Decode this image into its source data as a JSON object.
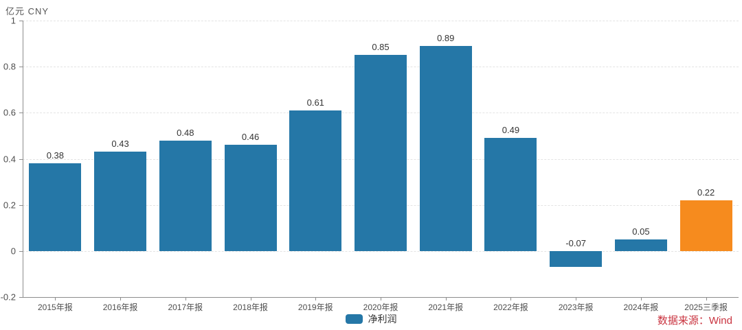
{
  "unit_label": "亿元  CNY",
  "source": {
    "text": "数据来源：Wind",
    "color": "#c9333f"
  },
  "legend": {
    "label": "净利润",
    "swatch_color": "#2577a7",
    "position": "bottom-center"
  },
  "chart_data": {
    "type": "bar",
    "title": "",
    "xlabel": "",
    "ylabel": "亿元 CNY",
    "categories": [
      "2015年报",
      "2016年报",
      "2017年报",
      "2018年报",
      "2019年报",
      "2020年报",
      "2021年报",
      "2022年报",
      "2023年报",
      "2024年报",
      "2025三季报"
    ],
    "series": [
      {
        "name": "净利润",
        "values": [
          0.38,
          0.43,
          0.48,
          0.46,
          0.61,
          0.85,
          0.89,
          0.49,
          -0.07,
          0.05,
          0.22
        ]
      }
    ],
    "data_labels": [
      "0.38",
      "0.43",
      "0.48",
      "0.46",
      "0.61",
      "0.85",
      "0.89",
      "0.49",
      "-0.07",
      "0.05",
      "0.22"
    ],
    "ylim": [
      -0.2,
      1
    ],
    "ytick_values": [
      1,
      0.8,
      0.6,
      0.4,
      0.2,
      0,
      -0.2
    ],
    "ytick_labels": [
      "1",
      "0.8",
      "0.6",
      "0.4",
      "0.2",
      "0",
      "-0.2"
    ],
    "grid": true,
    "gridline_style": "dashed",
    "bar_color": "#2577a7",
    "highlight_color": "#f68b1e",
    "highlight_index": 10,
    "legend_position": "bottom-center"
  }
}
